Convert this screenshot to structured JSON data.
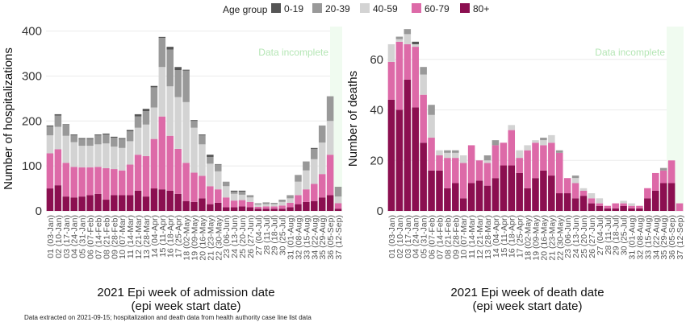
{
  "legend": {
    "title": "Age group",
    "items": [
      {
        "label": "0-19",
        "color": "#555555"
      },
      {
        "label": "20-39",
        "color": "#999999"
      },
      {
        "label": "40-59",
        "color": "#d3d3d3"
      },
      {
        "label": "60-79",
        "color": "#dd6aa8"
      },
      {
        "label": "80+",
        "color": "#8b0f50"
      }
    ]
  },
  "footnote": "Data extracted on 2021-09-15; hospitalization and death data from health authority case line list data",
  "week_labels": [
    "01 (03-Jan)",
    "02 (10-Jan)",
    "03 (17-Jan)",
    "04 (24-Jan)",
    "05 (31-Jan)",
    "06 (07-Feb)",
    "07 (14-Feb)",
    "08 (21-Feb)",
    "09 (28-Feb)",
    "10 (07-Mar)",
    "11 (14-Mar)",
    "12 (21-Mar)",
    "13 (28-Mar)",
    "14 (04-Apr)",
    "15 (11-Apr)",
    "16 (18-Apr)",
    "17 (25-Apr)",
    "18 (02-May)",
    "19 (09-May)",
    "20 (16-May)",
    "21 (23-May)",
    "22 (30-May)",
    "23 (06-Jun)",
    "24 (13-Jun)",
    "25 (20-Jun)",
    "26 (27-Jun)",
    "27 (04-Jul)",
    "28 (11-Jul)",
    "29 (18-Jul)",
    "30 (25-Jul)",
    "31 (01-Aug)",
    "32 (08-Aug)",
    "33 (15-Aug)",
    "34 (22-Aug)",
    "35 (29-Aug)",
    "36 (05-Sep)",
    "37 (12-Sep)"
  ],
  "chart_data": [
    {
      "type": "bar",
      "stacked": true,
      "ylabel": "Number of hospitalizations",
      "xlabel_line1": "2021 Epi week of admission date",
      "xlabel_line2": "(epi week start date)",
      "annotation": "Data incomplete",
      "ylim": [
        0,
        410
      ],
      "yticks": [
        0,
        100,
        200,
        300,
        400
      ],
      "grid": true,
      "series": [
        {
          "name": "80+",
          "values": [
            50,
            57,
            32,
            30,
            32,
            35,
            38,
            25,
            35,
            35,
            35,
            45,
            32,
            50,
            48,
            45,
            38,
            22,
            20,
            28,
            15,
            18,
            8,
            8,
            10,
            8,
            5,
            5,
            5,
            5,
            8,
            15,
            20,
            22,
            30,
            35,
            5
          ]
        },
        {
          "name": "60-79",
          "values": [
            78,
            80,
            75,
            68,
            65,
            62,
            60,
            70,
            58,
            55,
            68,
            80,
            90,
            110,
            162,
            122,
            100,
            85,
            65,
            50,
            40,
            30,
            22,
            15,
            14,
            12,
            4,
            5,
            5,
            7,
            10,
            20,
            28,
            38,
            52,
            90,
            12
          ]
        },
        {
          "name": "40-59",
          "values": [
            40,
            50,
            60,
            55,
            48,
            48,
            50,
            55,
            50,
            50,
            52,
            60,
            70,
            70,
            110,
            110,
            115,
            135,
            100,
            70,
            50,
            40,
            25,
            15,
            12,
            10,
            5,
            5,
            5,
            8,
            10,
            30,
            42,
            55,
            70,
            75,
            15
          ]
        },
        {
          "name": "20-39",
          "values": [
            20,
            25,
            25,
            15,
            15,
            15,
            20,
            20,
            20,
            20,
            22,
            25,
            30,
            45,
            65,
            82,
            60,
            70,
            15,
            20,
            15,
            15,
            10,
            5,
            7,
            5,
            3,
            4,
            3,
            5,
            7,
            15,
            20,
            23,
            38,
            55,
            20
          ]
        },
        {
          "name": "0-19",
          "values": [
            2,
            3,
            1,
            2,
            2,
            2,
            2,
            2,
            2,
            2,
            3,
            5,
            5,
            3,
            2,
            6,
            7,
            2,
            2,
            2,
            5,
            1,
            0,
            2,
            2,
            0,
            0,
            0,
            0,
            0,
            0,
            0,
            0,
            2,
            0,
            0,
            1
          ]
        }
      ]
    },
    {
      "type": "bar",
      "stacked": true,
      "ylabel": "Number of deaths",
      "xlabel_line1": "2021 Epi week of death date",
      "xlabel_line2": "(epi week start date)",
      "annotation": "Data incomplete",
      "ylim": [
        0,
        73
      ],
      "yticks": [
        0,
        20,
        40,
        60
      ],
      "grid": true,
      "series": [
        {
          "name": "80+",
          "values": [
            44,
            40,
            52,
            41,
            27,
            16,
            16,
            9,
            11,
            5,
            11,
            12,
            10,
            13,
            18,
            18,
            15,
            9,
            13,
            16,
            14,
            7,
            7,
            5,
            6,
            3,
            2,
            1,
            1,
            2,
            1,
            1,
            5,
            8,
            11,
            11,
            0
          ]
        },
        {
          "name": "60-79",
          "values": [
            15,
            27,
            14,
            24,
            19,
            13,
            6,
            12,
            10,
            14,
            15,
            8,
            9,
            13,
            9,
            14,
            6,
            15,
            14,
            10,
            13,
            16,
            6,
            6,
            2,
            2,
            1,
            1,
            2,
            1,
            1,
            1,
            4,
            7,
            5,
            9,
            3
          ]
        },
        {
          "name": "40-59",
          "values": [
            7,
            1,
            4,
            1,
            8,
            9,
            2,
            2,
            2,
            3,
            0,
            0,
            1,
            0,
            0,
            2,
            3,
            2,
            1,
            2,
            3,
            0,
            0,
            2,
            1,
            2,
            2,
            0,
            0,
            1,
            1,
            0,
            0,
            0,
            0,
            0,
            0
          ]
        },
        {
          "name": "20-39",
          "values": [
            0,
            1,
            2,
            0,
            3,
            4,
            0,
            1,
            1,
            0,
            0,
            0,
            2,
            2,
            0,
            0,
            0,
            0,
            0,
            1,
            0,
            1,
            0,
            1,
            0,
            0,
            0,
            0,
            0,
            0,
            0,
            0,
            0,
            0,
            1,
            0,
            0
          ]
        },
        {
          "name": "0-19",
          "values": [
            0,
            0,
            0,
            1,
            0,
            0,
            0,
            0,
            0,
            0,
            0,
            0,
            0,
            0,
            0,
            0,
            0,
            0,
            0,
            0,
            0,
            0,
            0,
            0,
            0,
            0,
            0,
            0,
            0,
            0,
            0,
            0,
            0,
            0,
            0,
            0,
            0
          ]
        }
      ]
    }
  ]
}
